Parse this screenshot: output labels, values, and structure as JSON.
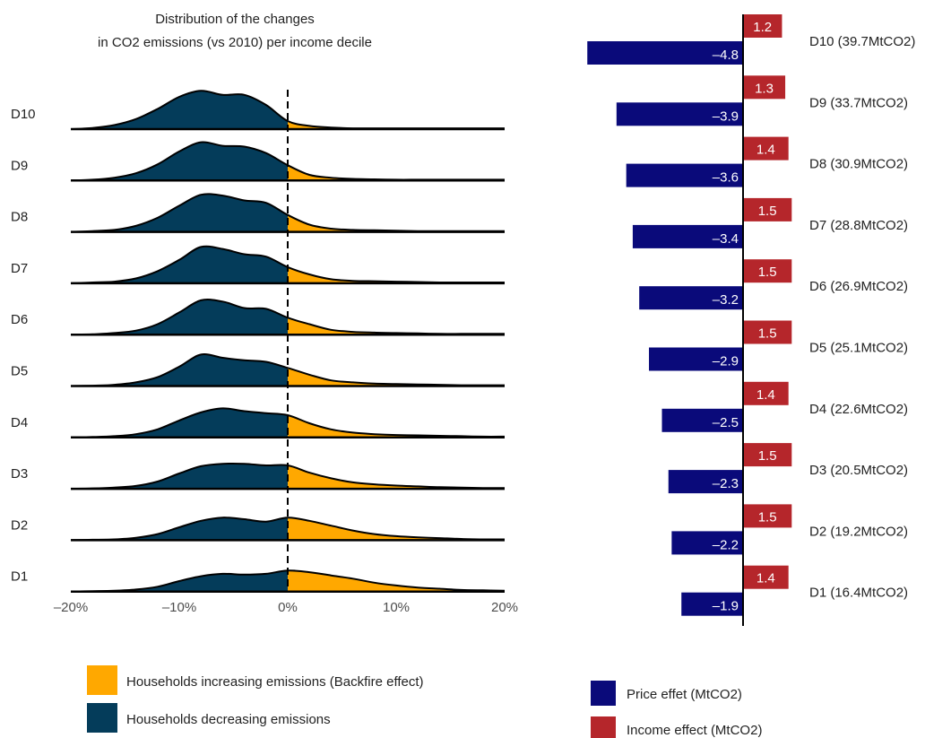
{
  "colors": {
    "increase": "#FFA800",
    "decrease": "#043C5A",
    "price": "#0A0A7A",
    "income": "#B5262B",
    "outline": "#000000",
    "axis_text": "#4D4D4D"
  },
  "chart_data": [
    {
      "type": "ridgeline",
      "title": "Distribution of the changes\nin CO2 emissions (vs 2010) per income decile",
      "title_lines": [
        "Distribution of the changes",
        "in CO2 emissions (vs 2010) per income decile"
      ],
      "xlim": [
        -20,
        20
      ],
      "x_ticks": [
        -20,
        -10,
        0,
        10,
        20
      ],
      "x_tick_labels": [
        "–20%",
        "–10%",
        "0%",
        "10%",
        "20%"
      ],
      "reference_line_x": 0,
      "legend": [
        {
          "label": "Households increasing emissions (Backfire effect)",
          "color": "#FFA800"
        },
        {
          "label": "Households decreasing emissions",
          "color": "#043C5A"
        }
      ],
      "series": [
        {
          "name": "D10",
          "x": [
            -20,
            -18,
            -16,
            -14,
            -12,
            -10,
            -8,
            -6,
            -4,
            -2,
            0,
            2,
            4,
            6,
            8,
            10,
            12,
            14,
            16,
            18,
            20
          ],
          "y": [
            0.0,
            0.03,
            0.1,
            0.25,
            0.5,
            0.8,
            0.95,
            0.85,
            0.85,
            0.6,
            0.2,
            0.08,
            0.04,
            0.02,
            0.02,
            0.02,
            0.02,
            0.02,
            0.02,
            0.02,
            0.02
          ]
        },
        {
          "name": "D9",
          "x": [
            -20,
            -18,
            -16,
            -14,
            -12,
            -10,
            -8,
            -6,
            -4,
            -2,
            0,
            2,
            4,
            6,
            8,
            10,
            12,
            14,
            16,
            18,
            20
          ],
          "y": [
            0.0,
            0.02,
            0.07,
            0.18,
            0.4,
            0.72,
            0.95,
            0.86,
            0.84,
            0.68,
            0.38,
            0.14,
            0.07,
            0.04,
            0.03,
            0.02,
            0.02,
            0.02,
            0.02,
            0.02,
            0.02
          ]
        },
        {
          "name": "D8",
          "x": [
            -20,
            -18,
            -16,
            -14,
            -12,
            -10,
            -8,
            -6,
            -4,
            -2,
            0,
            2,
            4,
            6,
            8,
            10,
            12,
            14,
            16,
            18,
            20
          ],
          "y": [
            0.0,
            0.02,
            0.05,
            0.15,
            0.35,
            0.65,
            0.92,
            0.9,
            0.78,
            0.72,
            0.42,
            0.18,
            0.08,
            0.05,
            0.04,
            0.03,
            0.02,
            0.02,
            0.02,
            0.02,
            0.02
          ]
        },
        {
          "name": "D7",
          "x": [
            -20,
            -18,
            -16,
            -14,
            -12,
            -10,
            -8,
            -6,
            -4,
            -2,
            0,
            2,
            4,
            6,
            8,
            10,
            12,
            14,
            16,
            18,
            20
          ],
          "y": [
            0.0,
            0.02,
            0.04,
            0.12,
            0.3,
            0.58,
            0.9,
            0.85,
            0.72,
            0.66,
            0.4,
            0.22,
            0.1,
            0.06,
            0.05,
            0.04,
            0.03,
            0.02,
            0.02,
            0.02,
            0.02
          ]
        },
        {
          "name": "D6",
          "x": [
            -20,
            -18,
            -16,
            -14,
            -12,
            -10,
            -8,
            -6,
            -4,
            -2,
            0,
            2,
            4,
            6,
            8,
            10,
            12,
            14,
            16,
            18,
            20
          ],
          "y": [
            0.0,
            0.01,
            0.04,
            0.1,
            0.26,
            0.55,
            0.85,
            0.82,
            0.66,
            0.64,
            0.42,
            0.26,
            0.12,
            0.07,
            0.05,
            0.04,
            0.03,
            0.02,
            0.02,
            0.02,
            0.02
          ]
        },
        {
          "name": "D5",
          "x": [
            -20,
            -18,
            -16,
            -14,
            -12,
            -10,
            -8,
            -6,
            -4,
            -2,
            0,
            2,
            4,
            6,
            8,
            10,
            12,
            14,
            16,
            18,
            20
          ],
          "y": [
            0.0,
            0.01,
            0.03,
            0.09,
            0.22,
            0.48,
            0.78,
            0.7,
            0.64,
            0.6,
            0.45,
            0.28,
            0.14,
            0.09,
            0.06,
            0.05,
            0.04,
            0.03,
            0.02,
            0.02,
            0.02
          ]
        },
        {
          "name": "D4",
          "x": [
            -20,
            -18,
            -16,
            -14,
            -12,
            -10,
            -8,
            -6,
            -4,
            -2,
            0,
            2,
            4,
            6,
            8,
            10,
            12,
            14,
            16,
            18,
            20
          ],
          "y": [
            0.0,
            0.01,
            0.03,
            0.08,
            0.2,
            0.42,
            0.62,
            0.72,
            0.65,
            0.6,
            0.55,
            0.35,
            0.2,
            0.12,
            0.08,
            0.06,
            0.05,
            0.04,
            0.03,
            0.02,
            0.02
          ]
        },
        {
          "name": "D3",
          "x": [
            -20,
            -18,
            -16,
            -14,
            -12,
            -10,
            -8,
            -6,
            -4,
            -2,
            0,
            2,
            4,
            6,
            8,
            10,
            12,
            14,
            16,
            18,
            20
          ],
          "y": [
            0.0,
            0.01,
            0.03,
            0.07,
            0.18,
            0.38,
            0.56,
            0.62,
            0.62,
            0.58,
            0.58,
            0.4,
            0.26,
            0.16,
            0.11,
            0.08,
            0.06,
            0.04,
            0.03,
            0.02,
            0.02
          ]
        },
        {
          "name": "D2",
          "x": [
            -20,
            -18,
            -16,
            -14,
            -12,
            -10,
            -8,
            -6,
            -4,
            -2,
            0,
            2,
            4,
            6,
            8,
            10,
            12,
            14,
            16,
            18,
            20
          ],
          "y": [
            0.0,
            0.01,
            0.02,
            0.06,
            0.15,
            0.32,
            0.48,
            0.56,
            0.52,
            0.46,
            0.56,
            0.48,
            0.36,
            0.24,
            0.15,
            0.1,
            0.07,
            0.05,
            0.03,
            0.02,
            0.02
          ]
        },
        {
          "name": "D1",
          "x": [
            -20,
            -18,
            -16,
            -14,
            -12,
            -10,
            -8,
            -6,
            -4,
            -2,
            0,
            2,
            4,
            6,
            8,
            10,
            12,
            14,
            16,
            18,
            20
          ],
          "y": [
            0.0,
            0.01,
            0.02,
            0.05,
            0.12,
            0.26,
            0.38,
            0.44,
            0.42,
            0.44,
            0.52,
            0.48,
            0.4,
            0.32,
            0.22,
            0.15,
            0.1,
            0.07,
            0.04,
            0.03,
            0.02
          ]
        }
      ]
    },
    {
      "type": "bar",
      "orientation": "horizontal",
      "categories": [
        "D10",
        "D9",
        "D8",
        "D7",
        "D6",
        "D5",
        "D4",
        "D3",
        "D2",
        "D1"
      ],
      "category_labels": [
        "D10 (39.7MtCO2)",
        "D9 (33.7MtCO2)",
        "D8 (30.9MtCO2)",
        "D7 (28.8MtCO2)",
        "D6 (26.9MtCO2)",
        "D5 (25.1MtCO2)",
        "D4 (22.6MtCO2)",
        "D3 (20.5MtCO2)",
        "D2 (19.2MtCO2)",
        "D1 (16.4MtCO2)"
      ],
      "series": [
        {
          "name": "Income effect (MtCO2)",
          "color": "#B5262B",
          "values": [
            1.2,
            1.3,
            1.4,
            1.5,
            1.5,
            1.5,
            1.4,
            1.5,
            1.5,
            1.4
          ],
          "labels": [
            "1.2",
            "1.3",
            "1.4",
            "1.5",
            "1.5",
            "1.5",
            "1.4",
            "1.5",
            "1.5",
            "1.4"
          ]
        },
        {
          "name": "Price effet (MtCO2)",
          "color": "#0A0A7A",
          "values": [
            -4.8,
            -3.9,
            -3.6,
            -3.4,
            -3.2,
            -2.9,
            -2.5,
            -2.3,
            -2.2,
            -1.9
          ],
          "labels": [
            "–4.8",
            "–3.9",
            "–3.6",
            "–3.4",
            "–3.2",
            "–2.9",
            "–2.5",
            "–2.3",
            "–2.2",
            "–1.9"
          ]
        }
      ],
      "legend": [
        {
          "label": "Price effet (MtCO2)",
          "color": "#0A0A7A"
        },
        {
          "label": "Income effect (MtCO2)",
          "color": "#B5262B"
        }
      ],
      "xlim": [
        -6.2,
        2.0
      ]
    }
  ]
}
